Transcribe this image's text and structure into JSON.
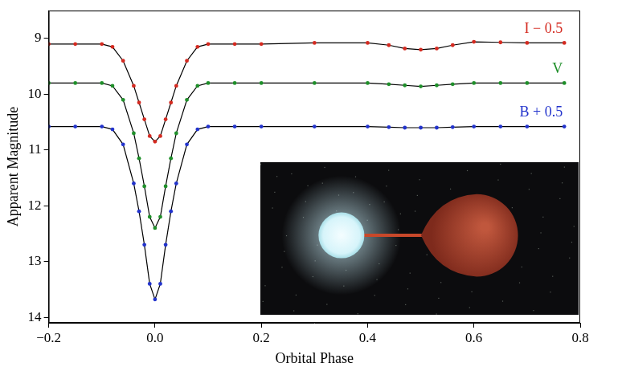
{
  "chart_data": {
    "type": "scatter",
    "x_label": "Orbital Phase",
    "y_label": "Apparent Magnitude",
    "x": [
      -0.2,
      -0.15,
      -0.1,
      -0.08,
      -0.06,
      -0.04,
      -0.03,
      -0.02,
      -0.01,
      0,
      0.01,
      0.02,
      0.03,
      0.04,
      0.06,
      0.08,
      0.1,
      0.15,
      0.2,
      0.3,
      0.4,
      0.44,
      0.47,
      0.5,
      0.53,
      0.56,
      0.6,
      0.65,
      0.7,
      0.77
    ],
    "series": [
      {
        "name": "I − 0.5",
        "color": "#d42a20",
        "marker": "dot",
        "line_style": "solid",
        "values": [
          9.1,
          9.1,
          9.1,
          9.15,
          9.4,
          9.85,
          10.15,
          10.45,
          10.75,
          10.85,
          10.75,
          10.45,
          10.15,
          9.85,
          9.4,
          9.15,
          9.1,
          9.1,
          9.1,
          9.08,
          9.08,
          9.12,
          9.18,
          9.2,
          9.18,
          9.12,
          9.06,
          9.07,
          9.08,
          9.08
        ]
      },
      {
        "name": "V",
        "color": "#1f8f2a",
        "marker": "dot",
        "line_style": "solid",
        "values": [
          9.8,
          9.8,
          9.8,
          9.85,
          10.1,
          10.7,
          11.15,
          11.65,
          12.2,
          12.4,
          12.2,
          11.65,
          11.15,
          10.7,
          10.1,
          9.85,
          9.8,
          9.8,
          9.8,
          9.8,
          9.8,
          9.82,
          9.84,
          9.86,
          9.84,
          9.82,
          9.8,
          9.8,
          9.8,
          9.8
        ]
      },
      {
        "name": "B + 0.5",
        "color": "#2233cc",
        "marker": "dot",
        "line_style": "solid",
        "values": [
          10.58,
          10.58,
          10.58,
          10.63,
          10.9,
          11.6,
          12.1,
          12.7,
          13.4,
          13.68,
          13.4,
          12.7,
          12.1,
          11.6,
          10.9,
          10.63,
          10.58,
          10.58,
          10.58,
          10.58,
          10.58,
          10.59,
          10.6,
          10.6,
          10.6,
          10.59,
          10.58,
          10.58,
          10.58,
          10.58
        ]
      }
    ],
    "xlim": [
      -0.2,
      0.8
    ],
    "xticks": [
      {
        "value": -0.2,
        "label": "−0.2"
      },
      {
        "value": 0,
        "label": "0.0"
      },
      0.2,
      0.4,
      0.6,
      0.8
    ],
    "ylim": [
      14.1,
      8.5
    ],
    "yticks": [
      9,
      10,
      11,
      12,
      13,
      14
    ],
    "grid": false
  }
}
